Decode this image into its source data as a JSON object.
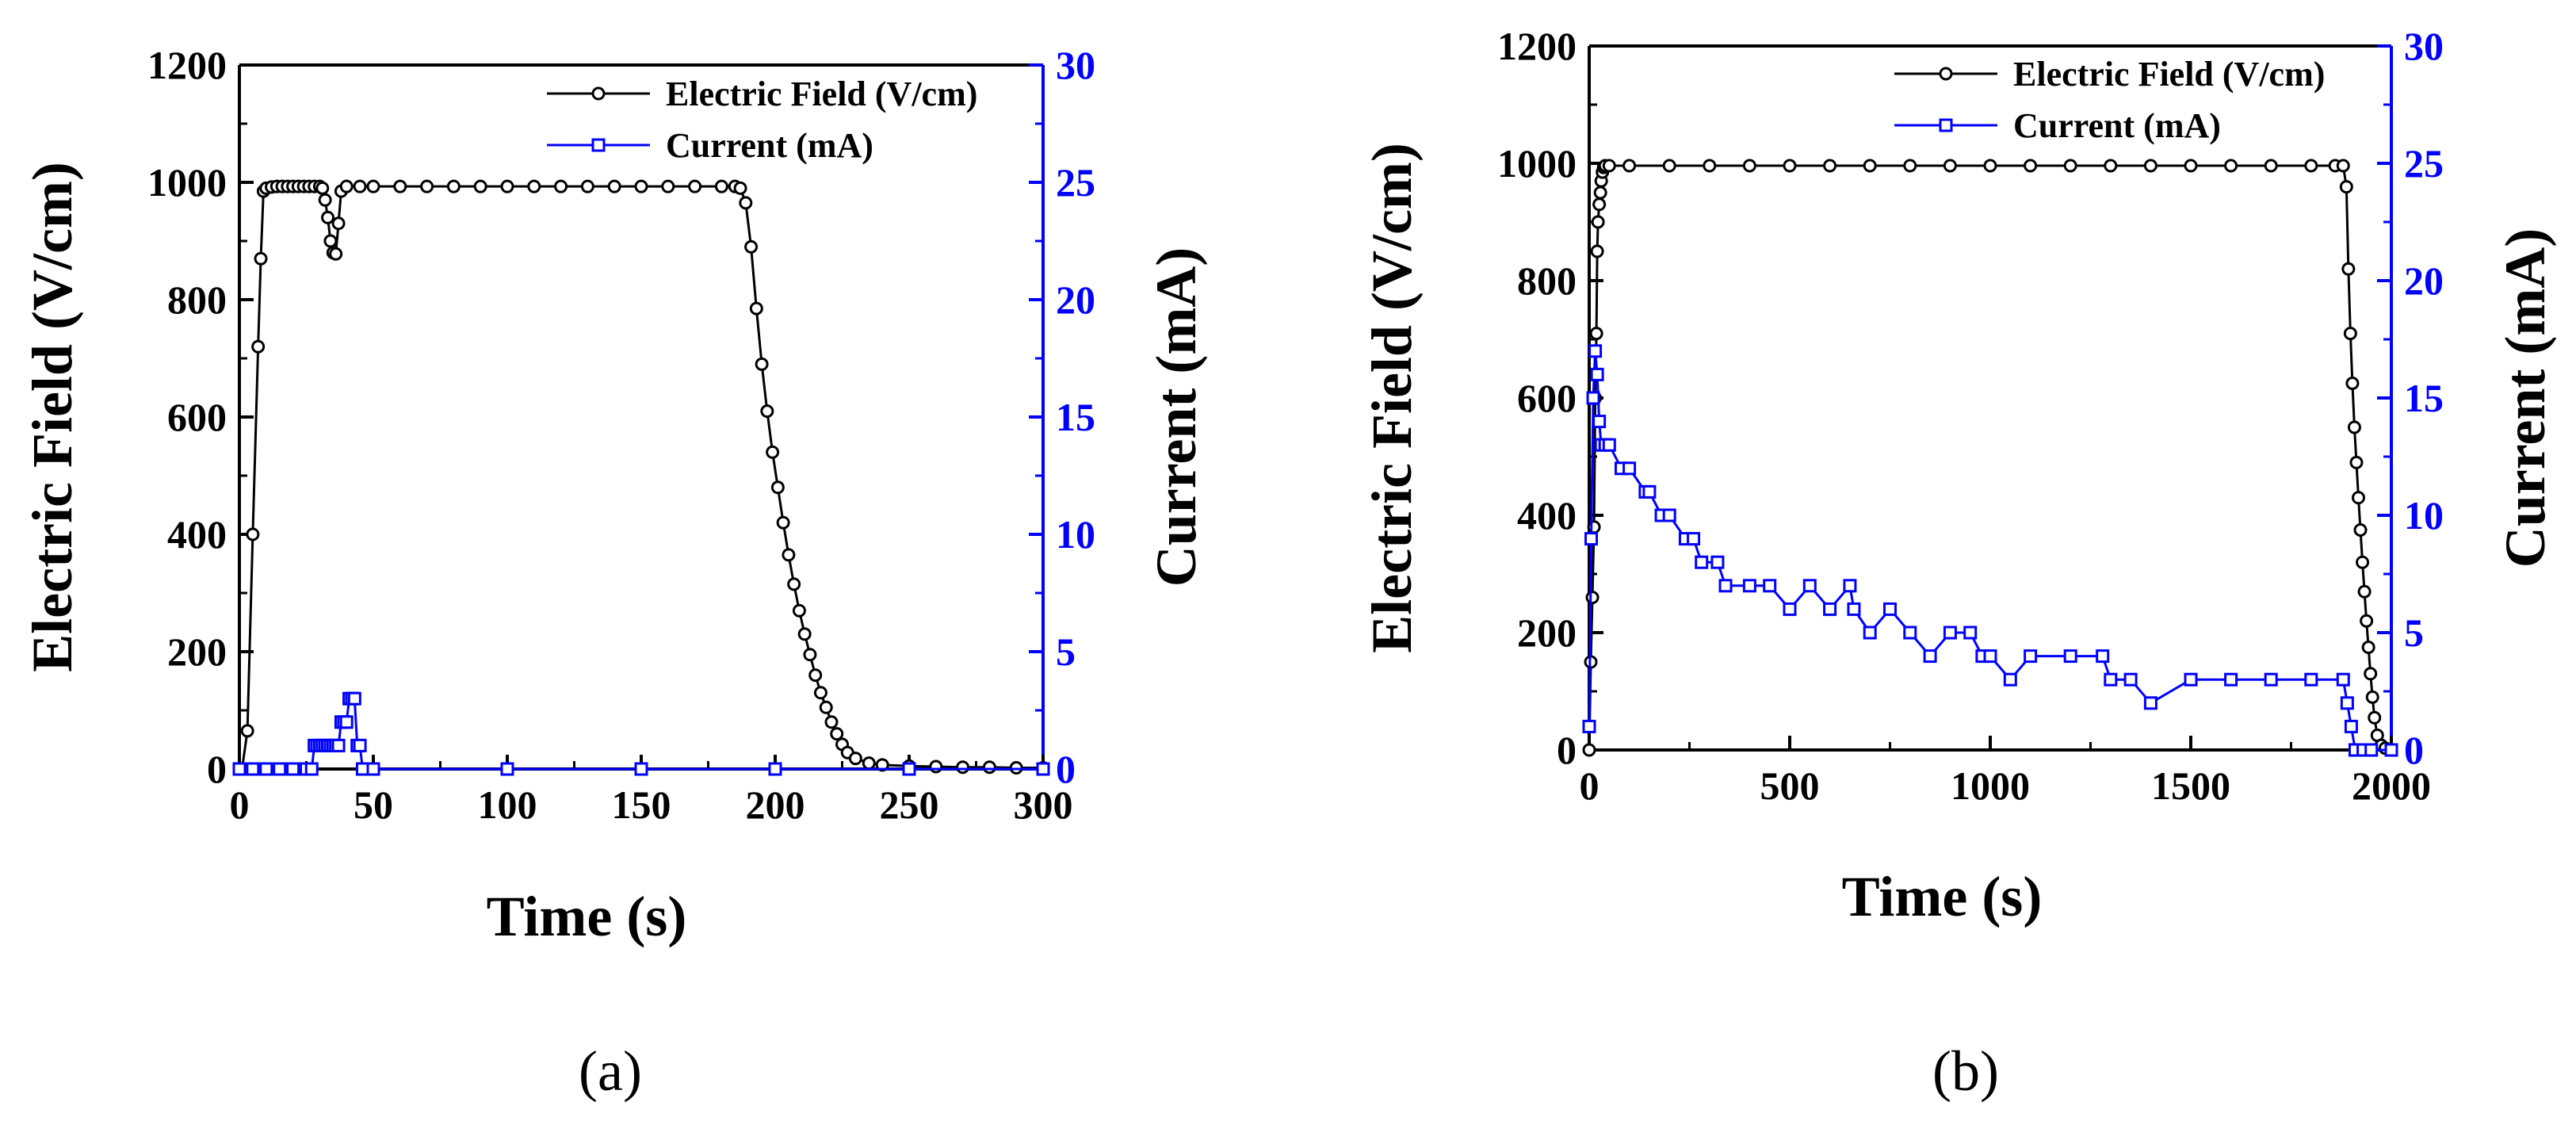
{
  "colors": {
    "field": "#000000",
    "current": "#0000ff",
    "axis": "#000000"
  },
  "panel_labels": [
    "(a)",
    "(b)"
  ],
  "chart_data": [
    {
      "type": "line",
      "panel": "(a)",
      "xlabel": "Time (s)",
      "ylabel_left": "Electric Field (V/cm)",
      "ylabel_right": "Current (mA)",
      "xlim": [
        0,
        300
      ],
      "ylim_left": [
        0,
        1200
      ],
      "ylim_right": [
        0,
        30
      ],
      "x_ticks": [
        0,
        50,
        100,
        150,
        200,
        250,
        300
      ],
      "x_tick_labels": [
        "0",
        "50",
        "100",
        "150",
        "200",
        "250",
        "300"
      ],
      "y_left_ticks": [
        0,
        200,
        400,
        600,
        800,
        1000,
        1200
      ],
      "y_left_tick_labels": [
        "0",
        "200",
        "400",
        "600",
        "800",
        "1000",
        "1200"
      ],
      "y_right_ticks": [
        0,
        5,
        10,
        15,
        20,
        25,
        30
      ],
      "y_right_tick_labels": [
        "0",
        "5",
        "10",
        "15",
        "20",
        "25",
        "30"
      ],
      "legend": [
        "Electric Field (V/cm)",
        "Current (mA)"
      ],
      "series": [
        {
          "name": "Electric Field (V/cm)",
          "axis": "left",
          "marker": "circle",
          "x": [
            1,
            3,
            5,
            7,
            8,
            9,
            10,
            12,
            14,
            16,
            18,
            20,
            22,
            24,
            26,
            28,
            30,
            31,
            32,
            33,
            34,
            35,
            36,
            37,
            38,
            40,
            45,
            50,
            60,
            70,
            80,
            90,
            100,
            110,
            120,
            130,
            140,
            150,
            160,
            170,
            180,
            185,
            187,
            189,
            191,
            193,
            195,
            197,
            199,
            201,
            203,
            205,
            207,
            209,
            211,
            213,
            215,
            217,
            219,
            221,
            223,
            225,
            227,
            230,
            235,
            240,
            250,
            260,
            270,
            280,
            290,
            300
          ],
          "y": [
            0,
            65,
            400,
            720,
            870,
            985,
            990,
            992,
            993,
            993,
            993,
            993,
            993,
            993,
            993,
            993,
            993,
            990,
            970,
            940,
            900,
            880,
            878,
            930,
            985,
            993,
            993,
            993,
            993,
            993,
            993,
            993,
            993,
            993,
            993,
            993,
            993,
            993,
            993,
            993,
            993,
            993,
            990,
            965,
            890,
            785,
            690,
            610,
            540,
            480,
            420,
            365,
            315,
            270,
            230,
            195,
            160,
            130,
            105,
            80,
            60,
            42,
            28,
            18,
            10,
            7,
            5,
            4,
            3,
            3,
            2,
            2
          ]
        },
        {
          "name": "Current (mA)",
          "axis": "right",
          "marker": "square",
          "x": [
            0,
            5,
            10,
            15,
            20,
            25,
            27,
            28,
            29,
            30,
            31,
            32,
            33,
            34,
            35,
            36,
            37,
            38,
            39,
            40,
            41,
            42,
            43,
            44,
            45,
            46,
            50,
            100,
            150,
            200,
            250,
            300
          ],
          "y": [
            0,
            0,
            0,
            0,
            0,
            0,
            0,
            1,
            1,
            1,
            1,
            1,
            1,
            1,
            1,
            1,
            1,
            2,
            2,
            2,
            3,
            3,
            3,
            1,
            1,
            0,
            0,
            0,
            0,
            0,
            0,
            0
          ]
        }
      ]
    },
    {
      "type": "line",
      "panel": "(b)",
      "xlabel": "Time (s)",
      "ylabel_left": "Electric Field (V/cm)",
      "ylabel_right": "Current (mA)",
      "xlim": [
        0,
        2000
      ],
      "ylim_left": [
        0,
        1200
      ],
      "ylim_right": [
        0,
        30
      ],
      "x_ticks": [
        0,
        500,
        1000,
        1500,
        2000
      ],
      "x_tick_labels": [
        "0",
        "500",
        "1000",
        "1500",
        "2000"
      ],
      "y_left_ticks": [
        0,
        200,
        400,
        600,
        800,
        1000,
        1200
      ],
      "y_left_tick_labels": [
        "0",
        "200",
        "400",
        "600",
        "800",
        "1000",
        "1200"
      ],
      "y_right_ticks": [
        0,
        5,
        10,
        15,
        20,
        25,
        30
      ],
      "y_right_tick_labels": [
        "0",
        "5",
        "10",
        "15",
        "20",
        "25",
        "30"
      ],
      "legend": [
        "Electric Field (V/cm)",
        "Current (mA)"
      ],
      "series": [
        {
          "name": "Electric Field (V/cm)",
          "axis": "left",
          "marker": "circle",
          "x": [
            0,
            4,
            8,
            12,
            15,
            18,
            20,
            22,
            25,
            28,
            30,
            33,
            36,
            40,
            50,
            100,
            200,
            300,
            400,
            500,
            600,
            700,
            800,
            900,
            1000,
            1100,
            1200,
            1300,
            1400,
            1500,
            1600,
            1700,
            1800,
            1860,
            1880,
            1888,
            1893,
            1898,
            1903,
            1908,
            1913,
            1918,
            1923,
            1928,
            1933,
            1938,
            1943,
            1948,
            1953,
            1958,
            1965,
            1975,
            1985,
            2000
          ],
          "y": [
            0,
            150,
            260,
            380,
            600,
            710,
            850,
            900,
            930,
            950,
            970,
            985,
            993,
            996,
            996,
            996,
            996,
            996,
            996,
            996,
            996,
            996,
            996,
            996,
            996,
            996,
            996,
            996,
            996,
            996,
            996,
            996,
            996,
            996,
            996,
            960,
            820,
            710,
            625,
            550,
            490,
            430,
            375,
            320,
            270,
            220,
            175,
            130,
            90,
            55,
            25,
            8,
            3,
            0
          ]
        },
        {
          "name": "Current (mA)",
          "axis": "right",
          "marker": "square",
          "x": [
            0,
            5,
            10,
            15,
            20,
            25,
            30,
            40,
            50,
            80,
            100,
            140,
            150,
            180,
            200,
            240,
            260,
            280,
            320,
            340,
            400,
            450,
            500,
            550,
            600,
            650,
            660,
            700,
            750,
            800,
            850,
            900,
            950,
            980,
            1000,
            1050,
            1100,
            1200,
            1280,
            1300,
            1350,
            1400,
            1500,
            1600,
            1700,
            1800,
            1880,
            1890,
            1900,
            1910,
            1930,
            1950,
            2000
          ],
          "y": [
            1,
            9,
            15,
            17,
            16,
            14,
            13,
            13,
            13,
            12,
            12,
            11,
            11,
            10,
            10,
            9,
            9,
            8,
            8,
            7,
            7,
            7,
            6,
            7,
            6,
            7,
            6,
            5,
            6,
            5,
            4,
            5,
            5,
            4,
            4,
            3,
            4,
            4,
            4,
            3,
            3,
            2,
            3,
            3,
            3,
            3,
            3,
            2,
            1,
            0,
            0,
            0,
            0
          ]
        }
      ]
    }
  ]
}
